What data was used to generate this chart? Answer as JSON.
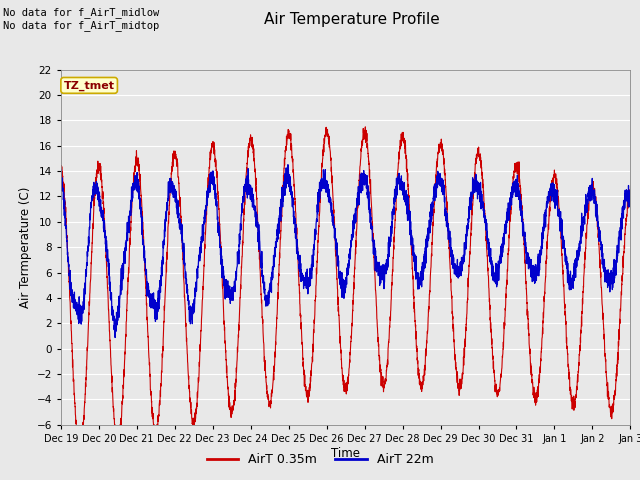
{
  "title": "Air Temperature Profile",
  "xlabel": "Time",
  "ylabel": "Air Termperature (C)",
  "ylim": [
    -6,
    22
  ],
  "yticks": [
    -6,
    -4,
    -2,
    0,
    2,
    4,
    6,
    8,
    10,
    12,
    14,
    16,
    18,
    20,
    22
  ],
  "text_top_left": "No data for f_AirT_midlow\nNo data for f_AirT_midtop",
  "annotation_box": "TZ_tmet",
  "legend_labels": [
    "AirT 0.35m",
    "AirT 22m"
  ],
  "line_colors": [
    "#cc0000",
    "#0000cc"
  ],
  "background_color": "#e8e8e8",
  "plot_bg_color": "#e8e8e8",
  "grid_color": "#ffffff",
  "x_tick_labels": [
    "Dec 19",
    "Dec 20",
    "Dec 21",
    "Dec 22",
    "Dec 23",
    "Dec 24",
    "Dec 25",
    "Dec 26",
    "Dec 27",
    "Dec 28",
    "Dec 29",
    "Dec 30",
    "Dec 31",
    "Jan 1",
    "Jan 2",
    "Jan 3"
  ]
}
